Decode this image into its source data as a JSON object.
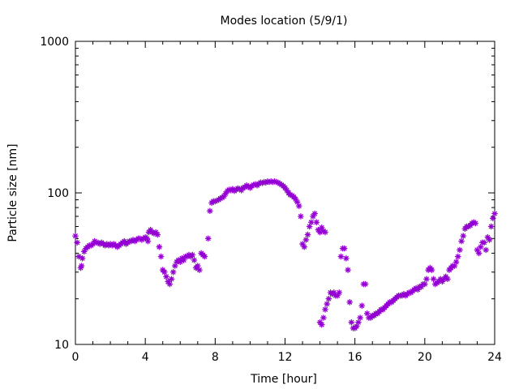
{
  "chart_data": {
    "type": "scatter",
    "title": "Modes location (5/9/1)",
    "xlabel": "Time [hour]",
    "ylabel": "Particle size [nm]",
    "xlim": [
      0,
      24
    ],
    "ylim": [
      10,
      1000
    ],
    "yscale": "log",
    "grid": false,
    "legend": "none",
    "x_ticks": [
      0,
      4,
      8,
      12,
      16,
      20,
      24
    ],
    "x_tick_labels": [
      "0",
      "4",
      "8",
      "12",
      "16",
      "20",
      "24"
    ],
    "y_ticks": [
      10,
      100,
      1000
    ],
    "y_tick_labels": [
      "10",
      "100",
      "1000"
    ],
    "marker_color": "#9400d3",
    "marker": "asterisk",
    "series": [
      {
        "points": [
          [
            0.0,
            52
          ],
          [
            0.1,
            47
          ],
          [
            0.2,
            38
          ],
          [
            0.3,
            32
          ],
          [
            0.35,
            33
          ],
          [
            0.4,
            37
          ],
          [
            0.5,
            41
          ],
          [
            0.6,
            43
          ],
          [
            0.7,
            44
          ],
          [
            0.8,
            45
          ],
          [
            0.9,
            45
          ],
          [
            1.0,
            46
          ],
          [
            1.1,
            48
          ],
          [
            1.2,
            47
          ],
          [
            1.3,
            47
          ],
          [
            1.4,
            46
          ],
          [
            1.5,
            47
          ],
          [
            1.6,
            46
          ],
          [
            1.7,
            45
          ],
          [
            1.8,
            46
          ],
          [
            1.9,
            45
          ],
          [
            2.0,
            46
          ],
          [
            2.1,
            45
          ],
          [
            2.2,
            46
          ],
          [
            2.3,
            45
          ],
          [
            2.4,
            44
          ],
          [
            2.5,
            45
          ],
          [
            2.6,
            46
          ],
          [
            2.7,
            47
          ],
          [
            2.8,
            48
          ],
          [
            2.9,
            46
          ],
          [
            3.0,
            47
          ],
          [
            3.1,
            48
          ],
          [
            3.2,
            48
          ],
          [
            3.3,
            49
          ],
          [
            3.4,
            48
          ],
          [
            3.5,
            49
          ],
          [
            3.6,
            50
          ],
          [
            3.7,
            50
          ],
          [
            3.8,
            49
          ],
          [
            3.9,
            50
          ],
          [
            4.0,
            51
          ],
          [
            4.1,
            50
          ],
          [
            4.15,
            48
          ],
          [
            4.2,
            55
          ],
          [
            4.3,
            57
          ],
          [
            4.4,
            55
          ],
          [
            4.5,
            54
          ],
          [
            4.6,
            55
          ],
          [
            4.7,
            53
          ],
          [
            4.8,
            44
          ],
          [
            4.9,
            38
          ],
          [
            5.0,
            31
          ],
          [
            5.1,
            30
          ],
          [
            5.2,
            28
          ],
          [
            5.3,
            26
          ],
          [
            5.4,
            25
          ],
          [
            5.5,
            27
          ],
          [
            5.6,
            30
          ],
          [
            5.7,
            33
          ],
          [
            5.8,
            35
          ],
          [
            5.9,
            36
          ],
          [
            6.0,
            35
          ],
          [
            6.1,
            37
          ],
          [
            6.2,
            36
          ],
          [
            6.3,
            38
          ],
          [
            6.4,
            38
          ],
          [
            6.5,
            39
          ],
          [
            6.6,
            38
          ],
          [
            6.7,
            39
          ],
          [
            6.8,
            36
          ],
          [
            6.9,
            32
          ],
          [
            7.0,
            33
          ],
          [
            7.1,
            31
          ],
          [
            7.2,
            40
          ],
          [
            7.3,
            39
          ],
          [
            7.4,
            38
          ],
          [
            7.6,
            50
          ],
          [
            7.7,
            76
          ],
          [
            7.8,
            86
          ],
          [
            7.9,
            88
          ],
          [
            8.0,
            88
          ],
          [
            8.1,
            89
          ],
          [
            8.2,
            90
          ],
          [
            8.3,
            92
          ],
          [
            8.4,
            93
          ],
          [
            8.5,
            95
          ],
          [
            8.6,
            99
          ],
          [
            8.7,
            103
          ],
          [
            8.8,
            105
          ],
          [
            8.9,
            104
          ],
          [
            9.0,
            106
          ],
          [
            9.1,
            103
          ],
          [
            9.2,
            105
          ],
          [
            9.3,
            107
          ],
          [
            9.4,
            106
          ],
          [
            9.5,
            104
          ],
          [
            9.6,
            108
          ],
          [
            9.7,
            109
          ],
          [
            9.8,
            112
          ],
          [
            9.9,
            110
          ],
          [
            10.0,
            108
          ],
          [
            10.1,
            111
          ],
          [
            10.2,
            113
          ],
          [
            10.3,
            114
          ],
          [
            10.4,
            112
          ],
          [
            10.5,
            115
          ],
          [
            10.6,
            117
          ],
          [
            10.7,
            116
          ],
          [
            10.8,
            118
          ],
          [
            10.9,
            117
          ],
          [
            11.0,
            119
          ],
          [
            11.1,
            118
          ],
          [
            11.2,
            119
          ],
          [
            11.3,
            118
          ],
          [
            11.4,
            119
          ],
          [
            11.5,
            118
          ],
          [
            11.6,
            117
          ],
          [
            11.7,
            115
          ],
          [
            11.8,
            113
          ],
          [
            11.9,
            111
          ],
          [
            12.0,
            108
          ],
          [
            12.1,
            104
          ],
          [
            12.2,
            100
          ],
          [
            12.3,
            97
          ],
          [
            12.4,
            96
          ],
          [
            12.5,
            94
          ],
          [
            12.6,
            91
          ],
          [
            12.7,
            87
          ],
          [
            12.8,
            82
          ],
          [
            12.9,
            70
          ],
          [
            13.0,
            46
          ],
          [
            13.1,
            44
          ],
          [
            13.2,
            49
          ],
          [
            13.3,
            53
          ],
          [
            13.4,
            60
          ],
          [
            13.5,
            64
          ],
          [
            13.6,
            70
          ],
          [
            13.7,
            73
          ],
          [
            13.8,
            64
          ],
          [
            13.9,
            57
          ],
          [
            14.0,
            55
          ],
          [
            14.1,
            59
          ],
          [
            14.2,
            56
          ],
          [
            14.3,
            55
          ],
          [
            14.0,
            14
          ],
          [
            14.1,
            13.5
          ],
          [
            14.2,
            15
          ],
          [
            14.3,
            17
          ],
          [
            14.4,
            18.5
          ],
          [
            14.5,
            20
          ],
          [
            14.6,
            22
          ],
          [
            14.7,
            21.5
          ],
          [
            14.8,
            22
          ],
          [
            14.9,
            21
          ],
          [
            15.0,
            21
          ],
          [
            15.1,
            22
          ],
          [
            15.2,
            38
          ],
          [
            15.3,
            43
          ],
          [
            15.4,
            43
          ],
          [
            15.5,
            37
          ],
          [
            15.6,
            31
          ],
          [
            15.7,
            19
          ],
          [
            15.8,
            14
          ],
          [
            15.9,
            12.8
          ],
          [
            16.0,
            12.8
          ],
          [
            16.1,
            13.2
          ],
          [
            16.2,
            14
          ],
          [
            16.3,
            15
          ],
          [
            16.4,
            18
          ],
          [
            16.5,
            25
          ],
          [
            16.6,
            25
          ],
          [
            16.7,
            16
          ],
          [
            16.8,
            15
          ],
          [
            16.9,
            15
          ],
          [
            17.0,
            15.5
          ],
          [
            17.1,
            15.5
          ],
          [
            17.2,
            16
          ],
          [
            17.3,
            16
          ],
          [
            17.4,
            16.5
          ],
          [
            17.5,
            17
          ],
          [
            17.6,
            17
          ],
          [
            17.7,
            17.5
          ],
          [
            17.8,
            18
          ],
          [
            17.9,
            18.5
          ],
          [
            18.0,
            19
          ],
          [
            18.1,
            19
          ],
          [
            18.2,
            19.5
          ],
          [
            18.3,
            20
          ],
          [
            18.4,
            20.5
          ],
          [
            18.5,
            21
          ],
          [
            18.6,
            21
          ],
          [
            18.7,
            21
          ],
          [
            18.8,
            21.5
          ],
          [
            18.9,
            21
          ],
          [
            19.0,
            21.5
          ],
          [
            19.1,
            22
          ],
          [
            19.2,
            22
          ],
          [
            19.3,
            22.5
          ],
          [
            19.4,
            23
          ],
          [
            19.5,
            23.5
          ],
          [
            19.6,
            23
          ],
          [
            19.7,
            24
          ],
          [
            19.8,
            24
          ],
          [
            19.9,
            25
          ],
          [
            20.0,
            25
          ],
          [
            20.1,
            27
          ],
          [
            20.2,
            31
          ],
          [
            20.3,
            32
          ],
          [
            20.4,
            31
          ],
          [
            20.5,
            27
          ],
          [
            20.6,
            25
          ],
          [
            20.7,
            25.5
          ],
          [
            20.8,
            26
          ],
          [
            20.9,
            27
          ],
          [
            21.0,
            26
          ],
          [
            21.1,
            27
          ],
          [
            21.2,
            28
          ],
          [
            21.3,
            27
          ],
          [
            21.4,
            31
          ],
          [
            21.5,
            32
          ],
          [
            21.6,
            33
          ],
          [
            21.7,
            33
          ],
          [
            21.8,
            35
          ],
          [
            21.9,
            38
          ],
          [
            22.0,
            42
          ],
          [
            22.1,
            48
          ],
          [
            22.2,
            52
          ],
          [
            22.3,
            58
          ],
          [
            22.4,
            60
          ],
          [
            22.5,
            60
          ],
          [
            22.6,
            61
          ],
          [
            22.7,
            63
          ],
          [
            22.8,
            64
          ],
          [
            22.9,
            63
          ],
          [
            23.0,
            42
          ],
          [
            23.1,
            40
          ],
          [
            23.2,
            44
          ],
          [
            23.3,
            47
          ],
          [
            23.4,
            47
          ],
          [
            23.5,
            42
          ],
          [
            23.6,
            51
          ],
          [
            23.7,
            49
          ],
          [
            23.8,
            60
          ],
          [
            23.9,
            68
          ],
          [
            24.0,
            73
          ]
        ]
      }
    ]
  }
}
